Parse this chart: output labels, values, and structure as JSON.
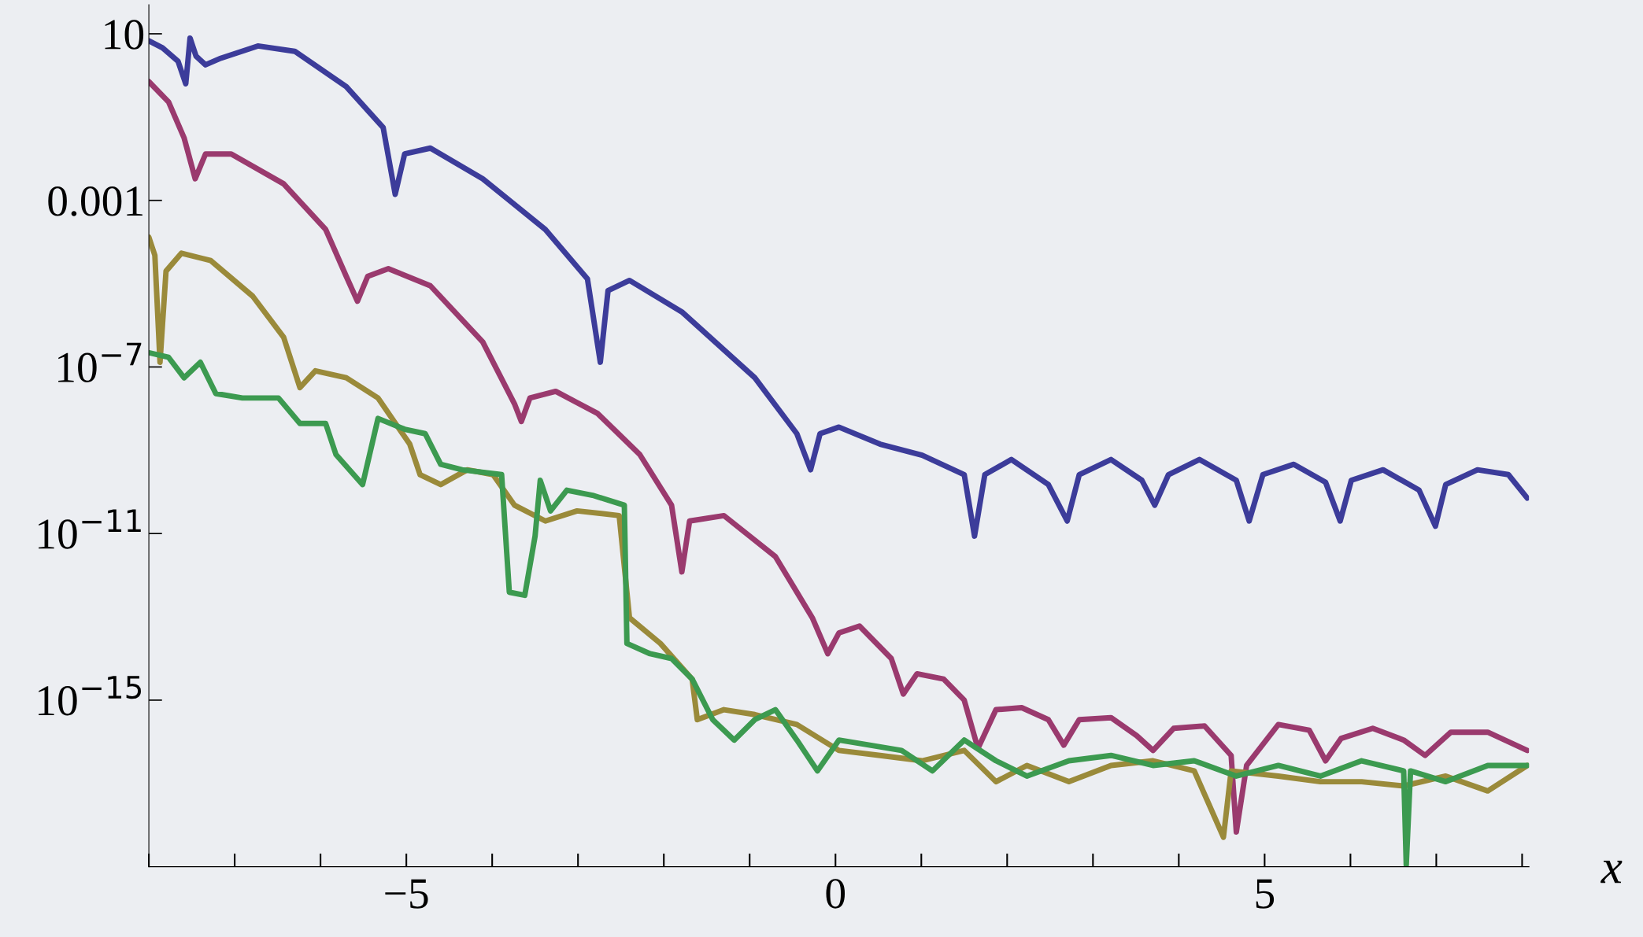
{
  "chart_data": {
    "type": "line",
    "xlabel": "x",
    "log": "y",
    "grid": false,
    "legend": false,
    "marker": "none",
    "line_style": "solid",
    "xlim": [
      -8,
      8.08
    ],
    "ylim": [
      1e-19,
      50
    ],
    "xticks": [
      {
        "value": -5,
        "label": "−5"
      },
      0,
      5
    ],
    "yticks": [
      10,
      0.001,
      {
        "value": 1e-07,
        "label": "10$^{−7}$"
      },
      {
        "value": 1e-11,
        "label": "10$^{−11}$"
      },
      {
        "value": 1e-15,
        "label": "10$^{−15}$"
      }
    ],
    "series": [
      {
        "color": "#3c3c9a",
        "x": [
          -8,
          -7.84,
          -7.66,
          -7.57,
          -7.52,
          -7.45,
          -7.34,
          -7.16,
          -6.73,
          -6.3,
          -5.7,
          -5.27,
          -5.13,
          -5.02,
          -4.72,
          -4.11,
          -3.38,
          -2.89,
          -2.74,
          -2.65,
          -2.4,
          -1.79,
          -0.94,
          -0.45,
          -0.29,
          -0.18,
          0.04,
          0.52,
          1.01,
          1.5,
          1.62,
          1.74,
          2.05,
          2.48,
          2.7,
          2.84,
          3.21,
          3.57,
          3.72,
          3.88,
          4.24,
          4.67,
          4.82,
          4.98,
          5.34,
          5.71,
          5.88,
          6.01,
          6.38,
          6.8,
          6.99,
          7.11,
          7.48,
          7.84,
          8.06
        ],
        "values": [
          6.8,
          4.6,
          2.2,
          0.63,
          7.9,
          2.9,
          1.8,
          2.6,
          5.1,
          3.8,
          0.54,
          0.056,
          0.0014,
          0.013,
          0.018,
          0.0033,
          0.0002,
          1.3e-05,
          1.3e-07,
          6.8e-06,
          1.2e-05,
          2.1e-06,
          5.5e-08,
          2.5e-09,
          3.4e-10,
          2.5e-09,
          3.6e-09,
          1.4e-09,
          7.6e-10,
          2.6e-10,
          8.7e-12,
          2.6e-10,
          6e-10,
          1.5e-10,
          2e-11,
          2.6e-10,
          6e-10,
          1.9e-10,
          4.8e-11,
          2.6e-10,
          6e-10,
          1.9e-10,
          2e-11,
          2.6e-10,
          4.6e-10,
          1.7e-10,
          2e-11,
          1.9e-10,
          3.4e-10,
          1.1e-10,
          1.5e-11,
          1.5e-10,
          3.4e-10,
          2.6e-10,
          7.1e-11
        ]
      },
      {
        "color": "#9a3a6e",
        "x": [
          -8,
          -7.77,
          -7.59,
          -7.46,
          -7.34,
          -7.04,
          -6.43,
          -5.94,
          -5.7,
          -5.57,
          -5.45,
          -5.21,
          -4.72,
          -4.11,
          -3.74,
          -3.66,
          -3.56,
          -3.26,
          -2.77,
          -2.28,
          -1.91,
          -1.79,
          -1.7,
          -1.3,
          -0.7,
          -0.27,
          -0.09,
          0.04,
          0.28,
          0.65,
          0.79,
          0.95,
          1.26,
          1.5,
          1.66,
          1.87,
          2.17,
          2.48,
          2.66,
          2.84,
          3.21,
          3.51,
          3.7,
          3.94,
          4.3,
          4.61,
          4.67,
          4.79,
          5.16,
          5.52,
          5.71,
          5.89,
          6.26,
          6.62,
          6.87,
          7.17,
          7.6,
          8.06
        ],
        "values": [
          0.71,
          0.23,
          0.032,
          0.0033,
          0.013,
          0.013,
          0.0025,
          0.0002,
          1.5e-05,
          3.8e-06,
          1.5e-05,
          2.3e-05,
          8.9e-06,
          4e-07,
          1.3e-08,
          4.9e-09,
          1.8e-08,
          2.6e-08,
          7.6e-09,
          7.9e-10,
          4.8e-11,
          1.2e-12,
          2e-11,
          2.7e-11,
          2.8e-12,
          9.5e-14,
          1.3e-14,
          4.1e-14,
          6e-14,
          1e-14,
          1.4e-15,
          4.3e-15,
          3.2e-15,
          1e-15,
          6.9e-17,
          5.9e-16,
          6.6e-16,
          3.4e-16,
          8.3e-17,
          3.4e-16,
          3.8e-16,
          1.4e-16,
          6.2e-17,
          2.1e-16,
          2.4e-16,
          4.7e-17,
          6.8e-19,
          2.7e-17,
          2.6e-16,
          1.9e-16,
          3.5e-17,
          1.2e-16,
          2.1e-16,
          1.1e-16,
          4.7e-17,
          1.7e-16,
          1.7e-16,
          6.2e-17
        ]
      },
      {
        "color": "#9a8a3a",
        "x": [
          -8,
          -7.93,
          -7.87,
          -7.8,
          -7.62,
          -7.28,
          -6.79,
          -6.43,
          -6.24,
          -6.06,
          -5.7,
          -5.33,
          -4.96,
          -4.84,
          -4.6,
          -4.29,
          -3.99,
          -3.74,
          -3.38,
          -3.01,
          -2.52,
          -2.4,
          -2.04,
          -1.67,
          -1.61,
          -1.3,
          -0.94,
          -0.45,
          0.04,
          0.52,
          1.01,
          1.5,
          1.87,
          2.23,
          2.72,
          3.21,
          3.7,
          4.18,
          4.52,
          4.61,
          5.16,
          5.65,
          6.13,
          6.62,
          7.11,
          7.6,
          8.06
        ],
        "values": [
          0.00013,
          4.8e-05,
          1.3e-07,
          2e-05,
          5.4e-05,
          3.6e-05,
          5e-06,
          5.2e-07,
          3.2e-08,
          8.1e-08,
          5.5e-08,
          1.8e-08,
          1.4e-09,
          2.6e-10,
          1.5e-10,
          3.4e-10,
          2.6e-10,
          4.8e-11,
          2e-11,
          3.5e-11,
          2.7e-11,
          9.5e-14,
          2.3e-14,
          3.2e-15,
          3.4e-16,
          5.9e-16,
          4.5e-16,
          2.6e-16,
          6.2e-17,
          4.7e-17,
          3.5e-17,
          6.2e-17,
          1.1e-17,
          2.7e-17,
          1.1e-17,
          2.7e-17,
          3.5e-17,
          2e-17,
          5.1e-19,
          2e-17,
          1.5e-17,
          1.1e-17,
          1.1e-17,
          8.7e-18,
          1.5e-17,
          6.6e-18,
          2.7e-17
        ]
      },
      {
        "color": "#3c9a50",
        "x": [
          -8,
          -7.77,
          -7.59,
          -7.4,
          -7.22,
          -6.91,
          -6.49,
          -6.24,
          -5.94,
          -5.82,
          -5.51,
          -5.33,
          -5.02,
          -4.78,
          -4.6,
          -4.35,
          -3.89,
          -3.8,
          -3.62,
          -3.5,
          -3.44,
          -3.32,
          -3.13,
          -2.83,
          -2.46,
          -2.43,
          -2.16,
          -1.91,
          -1.67,
          -1.43,
          -1.18,
          -0.94,
          -0.7,
          -0.45,
          -0.21,
          0.04,
          0.4,
          0.77,
          1.13,
          1.5,
          1.87,
          2.23,
          2.72,
          3.21,
          3.7,
          4.18,
          4.67,
          5.16,
          5.65,
          6.13,
          6.62,
          6.65,
          6.7,
          7.11,
          7.6,
          8.06
        ],
        "values": [
          2.2e-07,
          1.7e-07,
          5.5e-08,
          1.3e-07,
          2.3e-08,
          1.8e-08,
          1.8e-08,
          4.4e-09,
          4.4e-09,
          7.9e-10,
          1.5e-10,
          5.8e-09,
          3.2e-09,
          2.5e-09,
          4.6e-10,
          3.4e-10,
          2.6e-10,
          3.9e-13,
          3.3e-13,
          8.7e-12,
          1.9e-10,
          3.5e-11,
          1.1e-10,
          8.3e-11,
          4.8e-11,
          2.3e-14,
          1.3e-14,
          1e-14,
          3.2e-15,
          3.4e-16,
          1.1e-16,
          3.4e-16,
          5.9e-16,
          1.1e-16,
          2e-17,
          1.1e-16,
          8.3e-17,
          6.2e-17,
          2e-17,
          1.1e-16,
          3.5e-17,
          1.5e-17,
          3.5e-17,
          4.7e-17,
          2.7e-17,
          3.5e-17,
          1.5e-17,
          2.7e-17,
          1.5e-17,
          3.5e-17,
          2e-17,
          1.1e-19,
          2e-17,
          1.1e-17,
          2.7e-17,
          2.7e-17
        ]
      }
    ]
  }
}
